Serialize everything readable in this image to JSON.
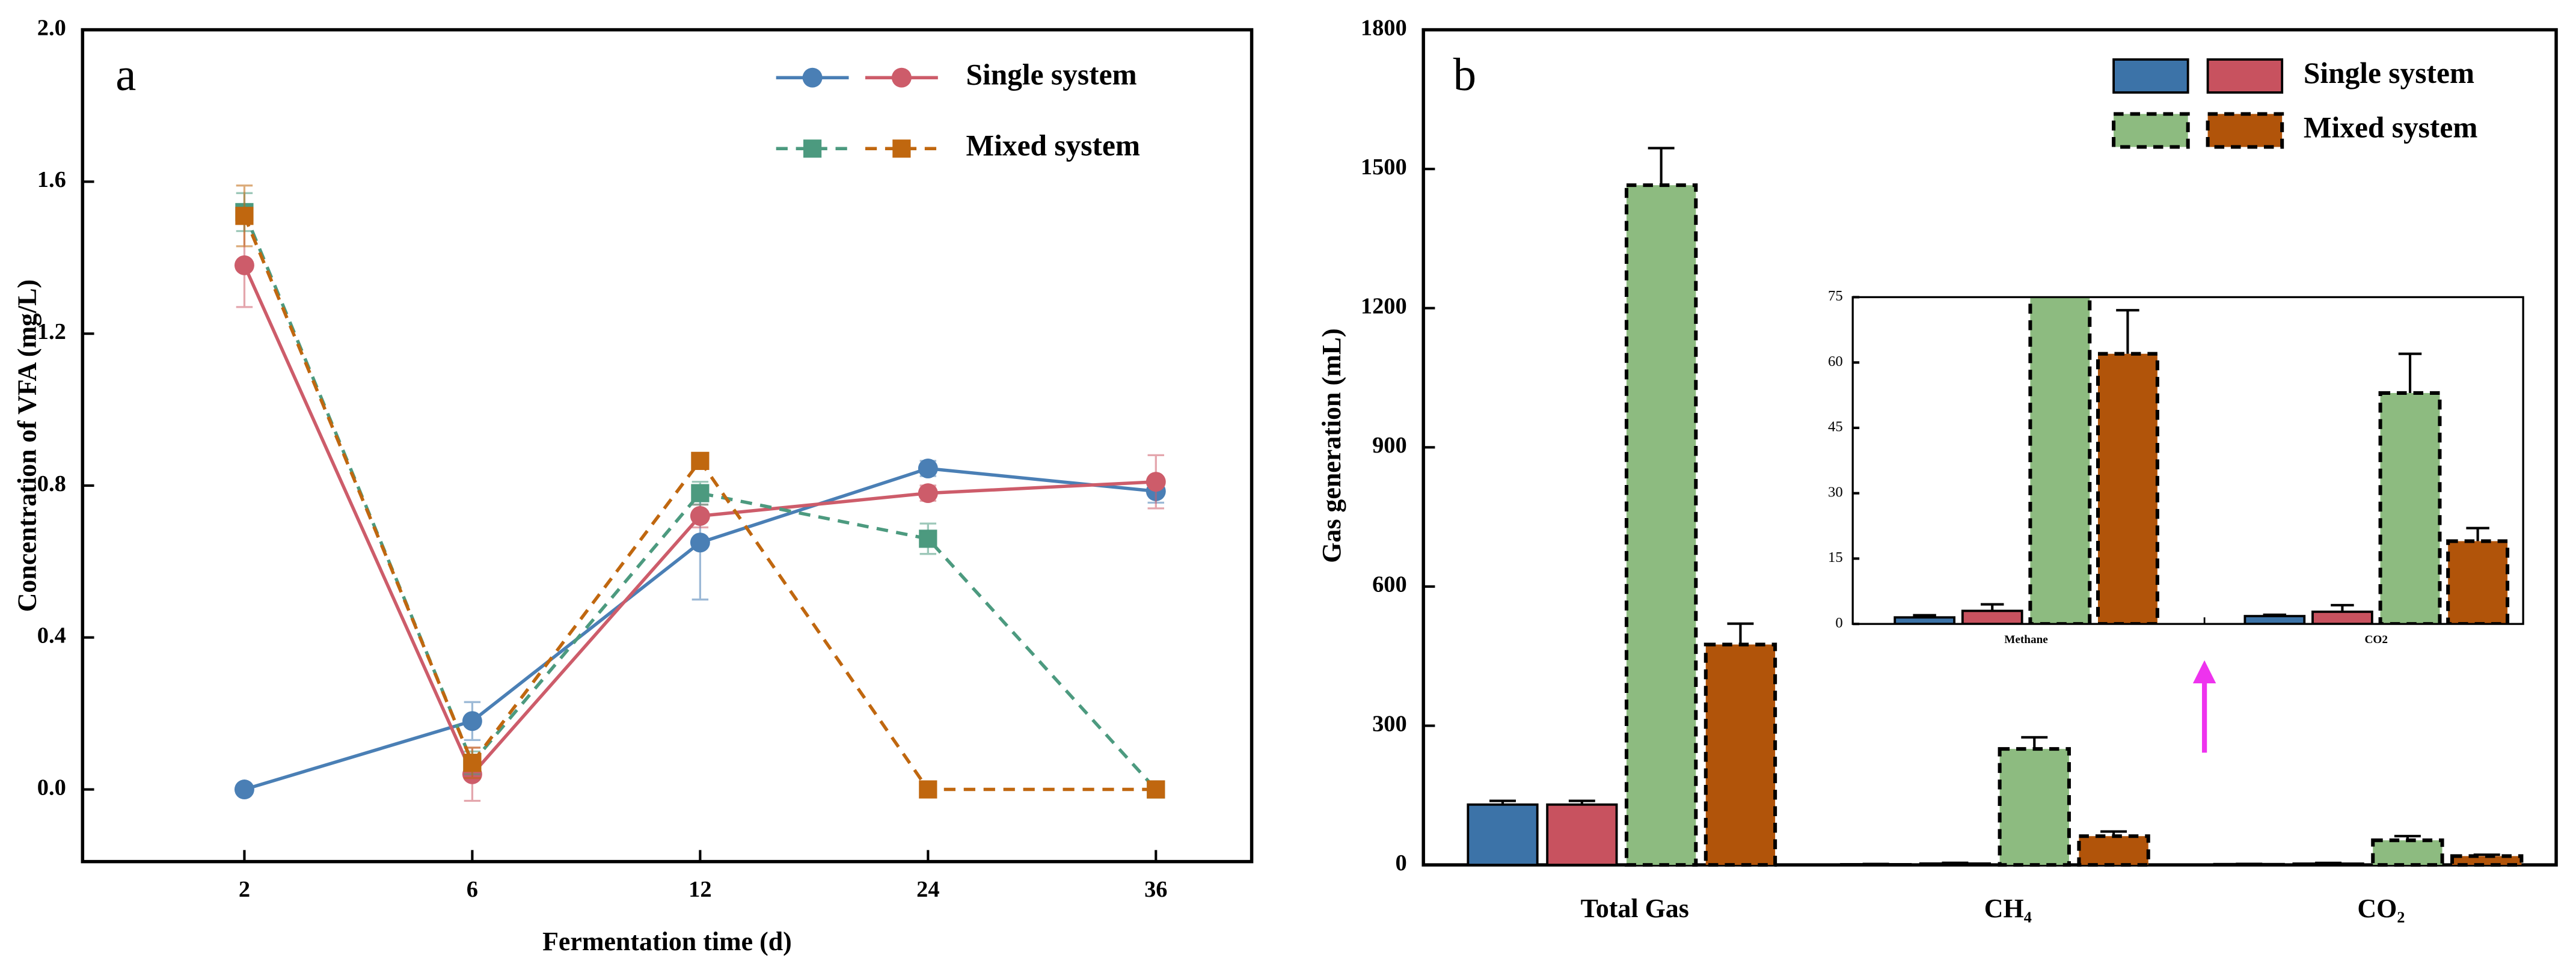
{
  "chart_data": [
    {
      "type": "line",
      "label": "a",
      "x_label": "Fermentation time (d)",
      "y_label": "Concentration of VFA (mg/L)",
      "categories": [
        "2",
        "6",
        "12",
        "24",
        "36"
      ],
      "ylim": [
        -0.19,
        2.0
      ],
      "yticks": [
        {
          "value": 0,
          "label": "0.0"
        },
        {
          "value": 0.4,
          "label": "0.4"
        },
        {
          "value": 0.8,
          "label": "0.8"
        },
        {
          "value": 1.2,
          "label": "1.2"
        },
        {
          "value": 1.6,
          "label": "1.6"
        },
        {
          "value": 2,
          "label": "2.0"
        }
      ],
      "legend_position": "upper right",
      "series": [
        {
          "name": "Single system",
          "color": "#4a7fb5",
          "marker": "circle",
          "dashed": false,
          "values": [
            0,
            0.18,
            0.65,
            0.845,
            0.785
          ],
          "errors": [
            0,
            0.05,
            0.15,
            0.02,
            0.03
          ]
        },
        {
          "name": "Single system",
          "color": "#cd5c6a",
          "marker": "circle",
          "dashed": false,
          "values": [
            1.38,
            0.04,
            0.72,
            0.78,
            0.81
          ],
          "errors": [
            0.11,
            0.07,
            0.03,
            0.02,
            0.07
          ]
        },
        {
          "name": "Mixed system",
          "color": "#4c9a7f",
          "marker": "square",
          "dashed": true,
          "values": [
            1.52,
            0.07,
            0.78,
            0.66,
            0
          ],
          "errors": [
            0.05,
            0.03,
            0.03,
            0.04,
            0
          ]
        },
        {
          "name": "Mixed system",
          "color": "#c0670f",
          "marker": "square",
          "dashed": true,
          "values": [
            1.51,
            0.07,
            0.865,
            0,
            0
          ],
          "errors": [
            0.08,
            0.04,
            0.02,
            0,
            0
          ]
        }
      ]
    },
    {
      "type": "bar",
      "label": "b",
      "y_label": "Gas generation (mL)",
      "categories": [
        "Total Gas",
        "CH₄",
        "CO₂"
      ],
      "ylim": [
        0,
        1800
      ],
      "yticks": [
        0,
        300,
        600,
        900,
        1200,
        1500,
        1800
      ],
      "legend_position": "upper right",
      "series": [
        {
          "name": "Single system",
          "color": "#3c73a8",
          "dashed": false,
          "values": [
            130,
            1.5,
            1.8
          ],
          "errors": [
            8,
            0.5,
            0.3
          ]
        },
        {
          "name": "Single system",
          "color": "#c8525f",
          "dashed": false,
          "values": [
            130,
            3,
            2.8
          ],
          "errors": [
            8,
            1.5,
            1.5
          ]
        },
        {
          "name": "Mixed system",
          "color": "#8dbb80",
          "dashed": true,
          "values": [
            1465,
            250,
            53
          ],
          "errors": [
            80,
            25,
            9
          ]
        },
        {
          "name": "Mixed system",
          "color": "#b1540a",
          "dashed": true,
          "values": [
            475,
            62,
            19
          ],
          "errors": [
            45,
            10,
            3
          ]
        }
      ],
      "inset": {
        "categories": [
          "Methane",
          "CO2"
        ],
        "ylim": [
          0,
          75
        ],
        "yticks": [
          0,
          15,
          30,
          45,
          60,
          75
        ]
      }
    }
  ]
}
